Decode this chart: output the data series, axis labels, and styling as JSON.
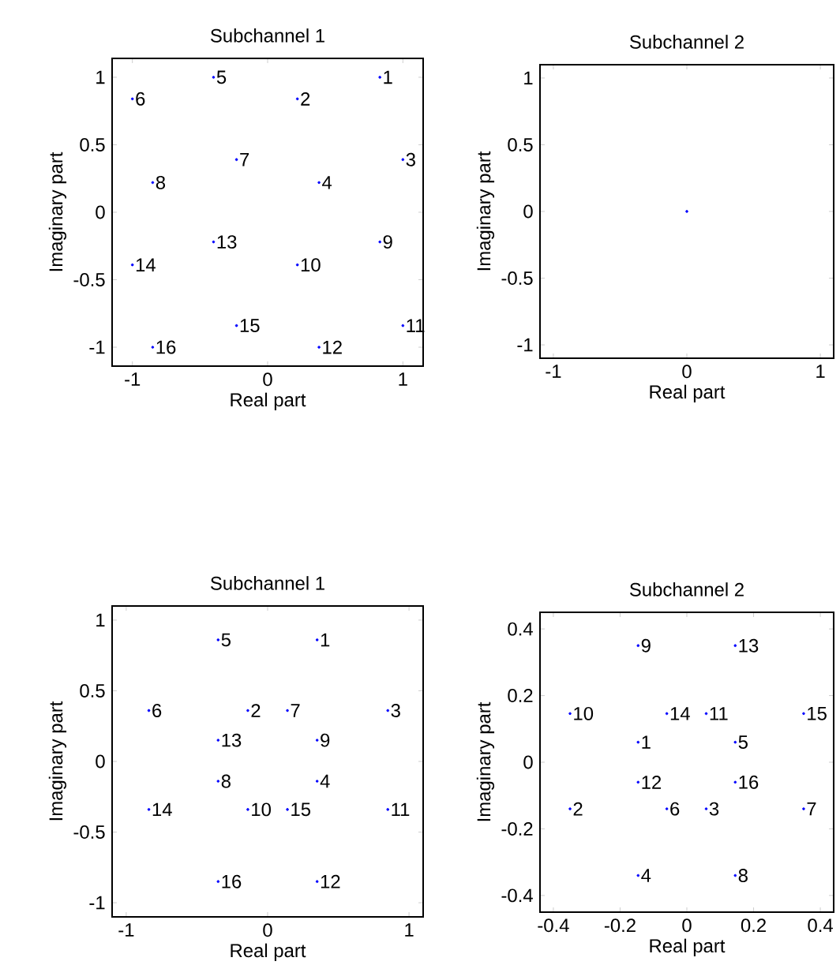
{
  "chart_data": [
    {
      "type": "scatter",
      "title": "Subchannel 1",
      "xlabel": "Real part",
      "ylabel": "Imaginary part",
      "color": "#0000ff",
      "x": [
        0.83,
        0.22,
        1.0,
        0.38,
        -0.4,
        -1.0,
        -0.23,
        -0.85,
        0.83,
        0.22,
        1.0,
        0.38,
        -0.4,
        -1.0,
        -0.23,
        -0.85
      ],
      "values": [
        1.0,
        0.84,
        0.39,
        0.22,
        1.0,
        0.84,
        0.39,
        0.22,
        -0.22,
        -0.39,
        -0.84,
        -1.0,
        -0.22,
        -0.39,
        -0.84,
        -1.0
      ],
      "xlim": [
        -1.15,
        1.15
      ],
      "ylim": [
        -1.14,
        1.14
      ],
      "xticks": [
        -1,
        0,
        1
      ],
      "yticks": [
        -1,
        -0.5,
        0,
        0.5,
        1
      ],
      "annotations": [
        {
          "text": "1",
          "x": 0.83,
          "y": 1.0
        },
        {
          "text": "2",
          "x": 0.22,
          "y": 0.84
        },
        {
          "text": "3",
          "x": 1.0,
          "y": 0.39
        },
        {
          "text": "4",
          "x": 0.38,
          "y": 0.22
        },
        {
          "text": "5",
          "x": -0.4,
          "y": 1.0
        },
        {
          "text": "6",
          "x": -1.0,
          "y": 0.84
        },
        {
          "text": "7",
          "x": -0.23,
          "y": 0.39
        },
        {
          "text": "8",
          "x": -0.85,
          "y": 0.22
        },
        {
          "text": "9",
          "x": 0.83,
          "y": -0.22
        },
        {
          "text": "10",
          "x": 0.22,
          "y": -0.39
        },
        {
          "text": "11",
          "x": 1.0,
          "y": -0.84
        },
        {
          "text": "12",
          "x": 0.38,
          "y": -1.0
        },
        {
          "text": "13",
          "x": -0.4,
          "y": -0.22
        },
        {
          "text": "14",
          "x": -1.0,
          "y": -0.39
        },
        {
          "text": "15",
          "x": -0.23,
          "y": -0.84
        },
        {
          "text": "16",
          "x": -0.85,
          "y": -1.0
        }
      ]
    },
    {
      "type": "scatter",
      "title": "Subchannel 2",
      "xlabel": "Real part",
      "ylabel": "Imaginary part",
      "color": "#0000ff",
      "x": [
        0
      ],
      "values": [
        0
      ],
      "xlim": [
        -1.1,
        1.1
      ],
      "ylim": [
        -1.1,
        1.1
      ],
      "xticks": [
        -1,
        0,
        1
      ],
      "yticks": [
        -1,
        -0.5,
        0,
        0.5,
        1
      ]
    },
    {
      "type": "scatter",
      "title": "Subchannel 1",
      "xlabel": "Real part",
      "ylabel": "Imaginary part",
      "color": "#0000ff",
      "x": [
        0.35,
        -0.14,
        0.85,
        0.35,
        -0.35,
        -0.84,
        0.14,
        -0.35,
        0.35,
        -0.14,
        0.85,
        0.35,
        -0.35,
        -0.84,
        0.14,
        -0.35
      ],
      "values": [
        0.86,
        0.36,
        0.36,
        -0.14,
        0.86,
        0.36,
        0.36,
        -0.14,
        0.15,
        -0.34,
        -0.34,
        -0.85,
        0.15,
        -0.34,
        -0.34,
        -0.85
      ],
      "xlim": [
        -1.1,
        1.1
      ],
      "ylim": [
        -1.1,
        1.1
      ],
      "xticks": [
        -1,
        0,
        1
      ],
      "yticks": [
        -1,
        -0.5,
        0,
        0.5,
        1
      ],
      "annotations": [
        {
          "text": "1",
          "x": 0.35,
          "y": 0.86
        },
        {
          "text": "2",
          "x": -0.14,
          "y": 0.36
        },
        {
          "text": "3",
          "x": 0.85,
          "y": 0.36
        },
        {
          "text": "4",
          "x": 0.35,
          "y": -0.14
        },
        {
          "text": "5",
          "x": -0.35,
          "y": 0.86
        },
        {
          "text": "6",
          "x": -0.84,
          "y": 0.36
        },
        {
          "text": "7",
          "x": 0.14,
          "y": 0.36
        },
        {
          "text": "8",
          "x": -0.35,
          "y": -0.14
        },
        {
          "text": "9",
          "x": 0.35,
          "y": 0.15
        },
        {
          "text": "10",
          "x": -0.14,
          "y": -0.34
        },
        {
          "text": "11",
          "x": 0.85,
          "y": -0.34
        },
        {
          "text": "12",
          "x": 0.35,
          "y": -0.85
        },
        {
          "text": "13",
          "x": -0.35,
          "y": 0.15
        },
        {
          "text": "14",
          "x": -0.84,
          "y": -0.34
        },
        {
          "text": "15",
          "x": 0.14,
          "y": -0.34
        },
        {
          "text": "16",
          "x": -0.35,
          "y": -0.85
        }
      ]
    },
    {
      "type": "scatter",
      "title": "Subchannel 2",
      "xlabel": "Real part",
      "ylabel": "Imaginary part",
      "color": "#0000ff",
      "x": [
        -0.146,
        -0.35,
        0.058,
        -0.146,
        0.145,
        -0.06,
        0.35,
        0.145,
        -0.146,
        -0.35,
        0.058,
        -0.146,
        0.145,
        -0.06,
        0.35,
        0.145
      ],
      "values": [
        0.06,
        -0.14,
        -0.14,
        -0.34,
        0.06,
        -0.14,
        -0.14,
        -0.34,
        0.35,
        0.146,
        0.146,
        -0.06,
        0.35,
        0.146,
        0.146,
        -0.06
      ],
      "xlim": [
        -0.44,
        0.44
      ],
      "ylim": [
        -0.45,
        0.45
      ],
      "xticks": [
        -0.4,
        -0.2,
        0,
        0.2,
        0.4
      ],
      "yticks": [
        -0.4,
        -0.2,
        0,
        0.2,
        0.4
      ],
      "annotations": [
        {
          "text": "1",
          "x": -0.146,
          "y": 0.06
        },
        {
          "text": "2",
          "x": -0.35,
          "y": -0.14
        },
        {
          "text": "3",
          "x": 0.058,
          "y": -0.14
        },
        {
          "text": "4",
          "x": -0.146,
          "y": -0.34
        },
        {
          "text": "5",
          "x": 0.145,
          "y": 0.06
        },
        {
          "text": "6",
          "x": -0.06,
          "y": -0.14
        },
        {
          "text": "7",
          "x": 0.35,
          "y": -0.14
        },
        {
          "text": "8",
          "x": 0.145,
          "y": -0.34
        },
        {
          "text": "9",
          "x": -0.146,
          "y": 0.35
        },
        {
          "text": "10",
          "x": -0.35,
          "y": 0.146
        },
        {
          "text": "11",
          "x": 0.058,
          "y": 0.146
        },
        {
          "text": "12",
          "x": -0.146,
          "y": -0.06
        },
        {
          "text": "13",
          "x": 0.145,
          "y": 0.35
        },
        {
          "text": "14",
          "x": -0.06,
          "y": 0.146
        },
        {
          "text": "15",
          "x": 0.35,
          "y": 0.146
        },
        {
          "text": "16",
          "x": 0.145,
          "y": -0.06
        }
      ]
    }
  ]
}
